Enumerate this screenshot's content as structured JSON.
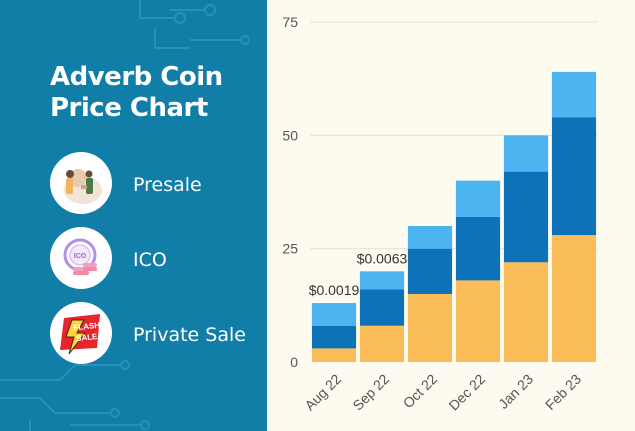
{
  "title_lines": [
    "Adverb Coin",
    "Price Chart"
  ],
  "legend": [
    {
      "label": "Presale",
      "icon": "presale-illustration-icon"
    },
    {
      "label": "ICO",
      "icon": "ico-coins-icon"
    },
    {
      "label": "Private Sale",
      "icon": "flash-sale-icon"
    }
  ],
  "colors": {
    "panel": "#117ea8",
    "background": "#fdfbf0",
    "presale": "#fbbd5a",
    "ico": "#0e72b8",
    "private_sale": "#4cb4f1"
  },
  "chart_data": {
    "type": "bar",
    "stacked": true,
    "categories": [
      "Aug 22",
      "Sep 22",
      "Oct 22",
      "Dec 22",
      "Jan 23",
      "Feb 23"
    ],
    "series": [
      {
        "name": "Presale",
        "values": [
          3,
          8,
          15,
          18,
          22,
          28
        ]
      },
      {
        "name": "ICO",
        "values": [
          5,
          8,
          10,
          14,
          20,
          26
        ]
      },
      {
        "name": "Private Sale",
        "values": [
          5,
          4,
          5,
          8,
          8,
          10
        ]
      }
    ],
    "y_ticks": [
      0,
      25,
      50,
      75
    ],
    "ylim": [
      0,
      75
    ],
    "data_labels": [
      "$0.0019",
      "$0.0063",
      "",
      "",
      "",
      ""
    ],
    "grid": true,
    "legend_position": "left"
  }
}
